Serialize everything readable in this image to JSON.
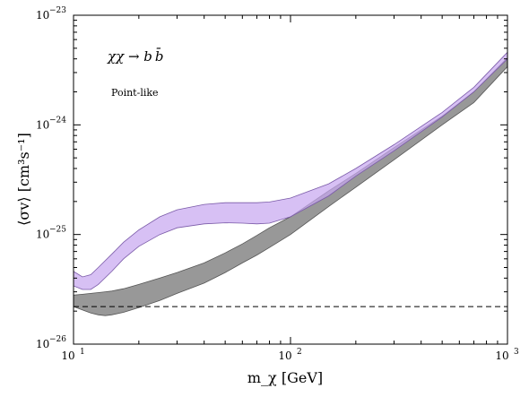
{
  "chart_data": {
    "type": "area",
    "xlabel": "m_χ [GeV]",
    "ylabel": "⟨σv⟩ [cm³s⁻¹]",
    "xscale": "log",
    "yscale": "log",
    "xlim": [
      10,
      1000
    ],
    "ylim": [
      1e-26,
      1e-23
    ],
    "grid": false,
    "x_ticks": [
      {
        "value": 10,
        "base": "10",
        "exp": "1"
      },
      {
        "value": 100,
        "base": "10",
        "exp": "2"
      },
      {
        "value": 1000,
        "base": "10",
        "exp": "3"
      }
    ],
    "y_ticks": [
      {
        "value": 1e-26,
        "base": "10",
        "exp": "−26"
      },
      {
        "value": 1e-25,
        "base": "10",
        "exp": "−25"
      },
      {
        "value": 1e-24,
        "base": "10",
        "exp": "−24"
      },
      {
        "value": 1e-23,
        "base": "10",
        "exp": "−23"
      }
    ],
    "annotations": {
      "channel_parts": [
        "χχ → b",
        "b",
        "̄"
      ],
      "channel": "χχ → bb̄",
      "model": "Point-like"
    },
    "reference_line": {
      "y": 2.2e-26,
      "style": "dashed",
      "color": "#000000"
    },
    "series": [
      {
        "color": "#8a8a8a",
        "edge_color": "#555555",
        "opacity": 0.88,
        "x": [
          10,
          11,
          12,
          13,
          14,
          15,
          17,
          20,
          25,
          30,
          40,
          50,
          60,
          70,
          80,
          100,
          150,
          200,
          300,
          500,
          700,
          1000
        ],
        "upper": [
          2.8e-26,
          2.85e-26,
          2.9e-26,
          2.95e-26,
          3e-26,
          3.05e-26,
          3.2e-26,
          3.5e-26,
          4e-26,
          4.5e-26,
          5.5e-26,
          6.8e-26,
          8.2e-26,
          9.8e-26,
          1.15e-25,
          1.45e-25,
          2.5e-25,
          3.6e-25,
          6.2e-25,
          1.2e-24,
          2e-24,
          4.1e-24
        ],
        "lower": [
          2.2e-26,
          2.05e-26,
          1.92e-26,
          1.85e-26,
          1.82e-26,
          1.85e-26,
          1.95e-26,
          2.15e-26,
          2.5e-26,
          2.9e-26,
          3.6e-26,
          4.5e-26,
          5.5e-26,
          6.5e-26,
          7.6e-26,
          1e-25,
          1.8e-25,
          2.7e-25,
          4.8e-25,
          1e-24,
          1.6e-24,
          3.4e-24
        ]
      },
      {
        "color": "#c8a8f0",
        "edge_color": "#7a5aa8",
        "opacity": 0.72,
        "x": [
          10,
          11,
          12,
          13,
          15,
          17,
          20,
          25,
          30,
          40,
          50,
          60,
          70,
          80,
          100,
          150,
          200,
          300,
          500,
          700,
          1000
        ],
        "upper": [
          4.6e-26,
          4.1e-26,
          4.3e-26,
          5e-26,
          6.6e-26,
          8.5e-26,
          1.1e-25,
          1.45e-25,
          1.68e-25,
          1.88e-25,
          1.95e-25,
          1.95e-25,
          1.95e-25,
          1.98e-25,
          2.15e-25,
          2.9e-25,
          4e-25,
          6.6e-25,
          1.3e-24,
          2.2e-24,
          4.6e-24
        ],
        "lower": [
          3.4e-26,
          3.15e-26,
          3.15e-26,
          3.5e-26,
          4.6e-26,
          6e-26,
          7.8e-26,
          1e-25,
          1.15e-25,
          1.25e-25,
          1.28e-25,
          1.27e-25,
          1.25e-25,
          1.27e-25,
          1.45e-25,
          2.25e-25,
          3.4e-25,
          5.8e-25,
          1.18e-24,
          2e-24,
          4e-24
        ]
      }
    ]
  }
}
